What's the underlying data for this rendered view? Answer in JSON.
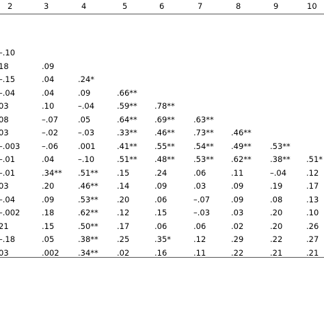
{
  "table": {
    "headers": [
      "2",
      "3",
      "4",
      "5",
      "6",
      "7",
      "8",
      "9",
      "10"
    ],
    "rows": [
      [
        "–.10",
        "",
        "",
        "",
        "",
        "",
        "",
        "",
        ""
      ],
      [
        "18",
        ".09",
        "",
        "",
        "",
        "",
        "",
        "",
        ""
      ],
      [
        "–.15",
        ".04",
        ".24*",
        "",
        "",
        "",
        "",
        "",
        ""
      ],
      [
        "–.04",
        ".04",
        ".09",
        ".66**",
        "",
        "",
        "",
        "",
        ""
      ],
      [
        "03",
        ".10",
        "–.04",
        ".59**",
        ".78**",
        "",
        "",
        "",
        ""
      ],
      [
        "08",
        "–.07",
        ".05",
        ".64**",
        ".69**",
        ".63**",
        "",
        "",
        ""
      ],
      [
        "03",
        "–.02",
        "–.03",
        ".33**",
        ".46**",
        ".73**",
        ".46**",
        "",
        ""
      ],
      [
        "–.003",
        "–.06",
        ".001",
        ".41**",
        ".55**",
        ".54**",
        ".49**",
        ".53**",
        ""
      ],
      [
        "–.01",
        ".04",
        "–.10",
        ".51**",
        ".48**",
        ".53**",
        ".62**",
        ".38**",
        ".51*"
      ],
      [
        "–.01",
        ".34**",
        ".51**",
        ".15",
        ".24",
        ".06",
        ".11",
        "–.04",
        ".12"
      ],
      [
        "03",
        ".20",
        ".46**",
        ".14",
        ".09",
        ".03",
        ".09",
        ".19",
        ".17"
      ],
      [
        "–.04",
        ".09",
        ".53**",
        ".20",
        ".06",
        "–.07",
        ".09",
        ".08",
        ".13"
      ],
      [
        "–.002",
        ".18",
        ".62**",
        ".12",
        ".15",
        "–.03",
        ".03",
        ".20",
        ".10"
      ],
      [
        "21",
        ".15",
        ".50**",
        ".17",
        ".06",
        ".06",
        ".02",
        ".20",
        ".26"
      ],
      [
        "–.18",
        ".05",
        ".38**",
        ".25",
        ".35*",
        ".12",
        ".29",
        ".22",
        ".27"
      ],
      [
        "03",
        ".002",
        ".34**",
        ".02",
        ".16",
        ".11",
        ".22",
        ".21",
        ".21"
      ]
    ]
  }
}
